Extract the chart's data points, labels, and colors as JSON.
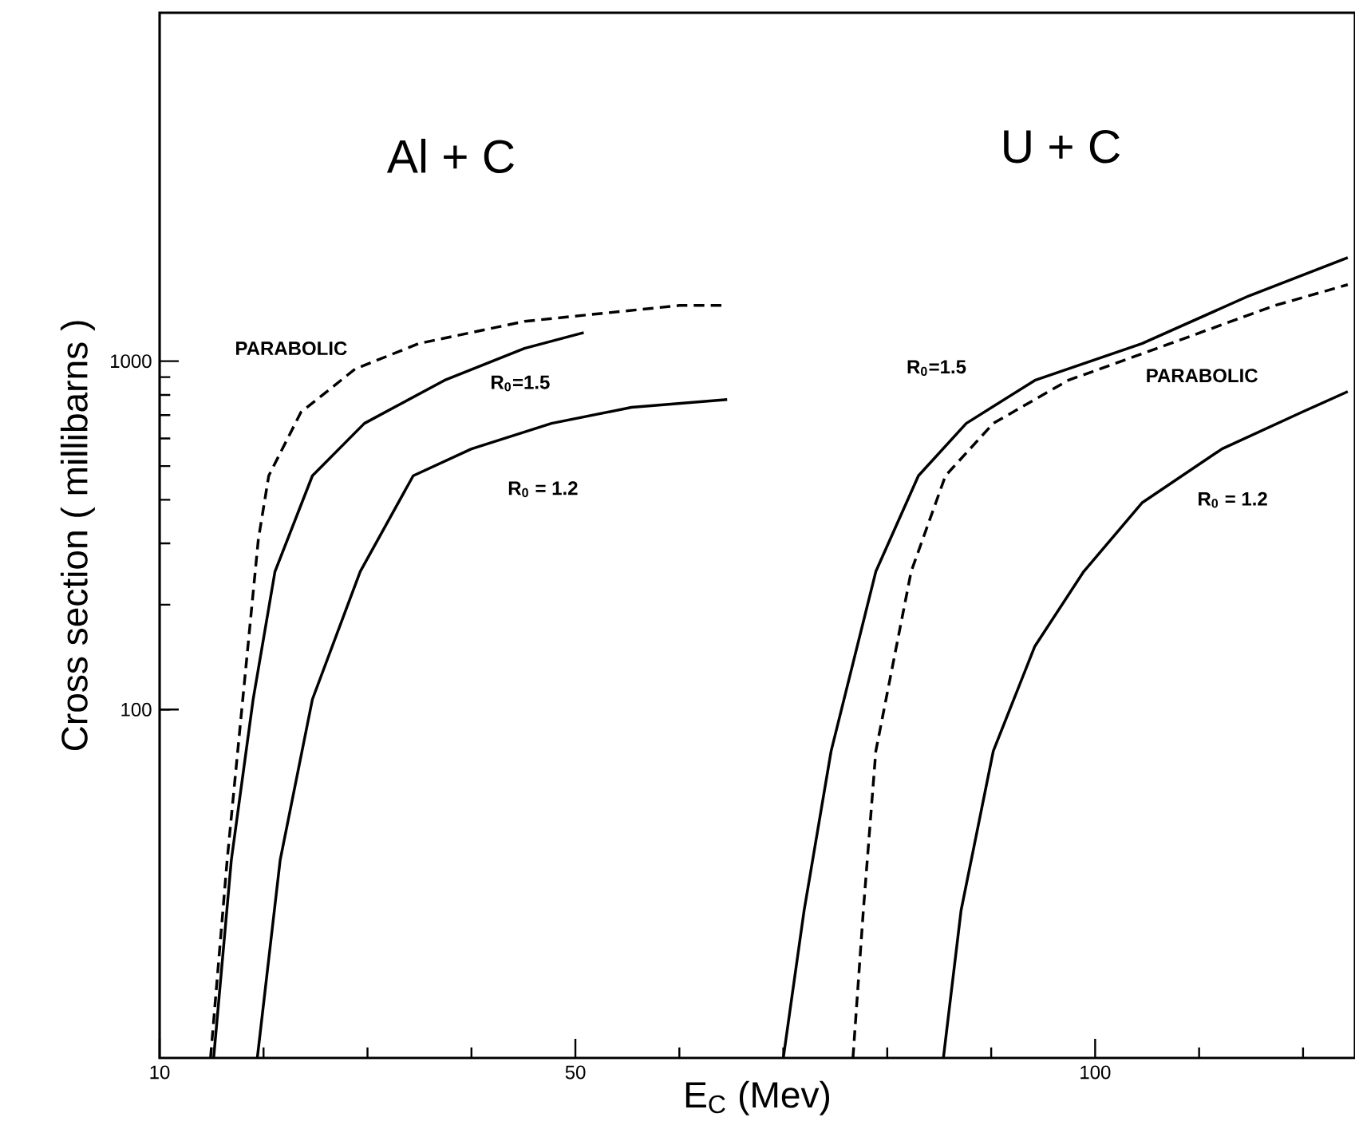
{
  "chart_data": {
    "type": "line",
    "xlabel": "E$_{C}$ (Mev)",
    "ylabel": "Cross section ( millibarns )",
    "log": "y",
    "xlim": [
      10,
      125
    ],
    "ylim": [
      10,
      10000
    ],
    "xticks": [
      10,
      {
        "value": 20,
        "label": null
      },
      {
        "value": 30,
        "label": null
      },
      {
        "value": 40,
        "label": null
      },
      50,
      {
        "value": 60,
        "label": null
      },
      {
        "value": 70,
        "label": null
      },
      {
        "value": 80,
        "label": null
      },
      {
        "value": 90,
        "label": null
      },
      100,
      {
        "value": 110,
        "label": null
      },
      {
        "value": 120,
        "label": null
      }
    ],
    "yticks": [
      100,
      1000
    ],
    "marker": "none",
    "series": [
      {
        "name": "PARABOLIC",
        "color": "#000000",
        "line_style": "dashed",
        "x": [
          14.9,
          16.5,
          18.0,
          19.5,
          20.5,
          23.6,
          28.8,
          34.9,
          45.1,
          60.0,
          64.6
        ],
        "values": [
          10,
          37,
          107,
          308,
          469,
          714,
          949,
          1123,
          1301,
          1445,
          1445
        ]
      },
      {
        "name": "R$_{0}$=1.5",
        "color": "#000000",
        "line_style": "solid",
        "x": [
          15.2,
          16.9,
          19.0,
          21.1,
          24.7,
          29.7,
          37.4,
          45.1,
          50.8
        ],
        "values": [
          10,
          37,
          107,
          249,
          469,
          663,
          881,
          1088,
          1208
        ]
      },
      {
        "name": "R$_{0}$ = 1.2",
        "color": "#000000",
        "line_style": "solid",
        "x": [
          19.4,
          21.6,
          24.7,
          29.3,
          34.4,
          40.0,
          47.7,
          55.4,
          64.6
        ],
        "values": [
          10,
          37,
          107,
          249,
          469,
          560,
          663,
          737,
          776
        ]
      },
      {
        "name": "R$_{0}$=1.5",
        "color": "#000000",
        "line_style": "solid",
        "x": [
          70.0,
          72.0,
          74.6,
          78.9,
          83.0,
          87.6,
          94.2,
          104.5,
          114.8,
          124.3
        ],
        "values": [
          10,
          26.5,
          76,
          249,
          469,
          663,
          881,
          1123,
          1540,
          1983
        ]
      },
      {
        "name": "PARABOLIC",
        "color": "#000000",
        "line_style": "dashed",
        "x": [
          76.7,
          77.7,
          78.9,
          82.3,
          85.6,
          90.2,
          97.4,
          107.2,
          117.3,
          124.3
        ],
        "values": [
          10,
          26.5,
          76,
          249,
          469,
          663,
          881,
          1123,
          1445,
          1658
        ]
      },
      {
        "name": "R$_{0}$ = 1.2",
        "color": "#000000",
        "line_style": "solid",
        "x": [
          85.4,
          87.1,
          90.2,
          94.2,
          98.9,
          104.5,
          112.2,
          119.9,
          124.3
        ],
        "values": [
          10,
          26.5,
          76,
          152,
          249,
          392,
          560,
          714,
          818
        ]
      }
    ],
    "annotations": [
      "Al + C",
      "U + C"
    ]
  }
}
